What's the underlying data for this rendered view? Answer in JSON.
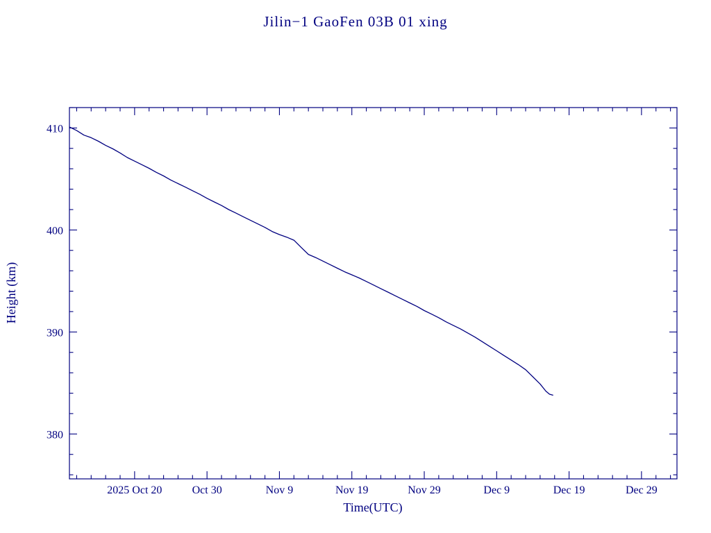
{
  "page": {
    "background": "#ffffff",
    "accent": "#000080"
  },
  "chart_data": {
    "type": "line",
    "title": "Jilin−1 GaoFen 03B 01 xing",
    "xlabel": "Time(UTC)",
    "ylabel": "Height (km)",
    "line_color": "#000080",
    "legend": "none",
    "grid": false,
    "x_encoding": "days, 0 = 2025 Oct 11 (left edge of frame)",
    "xlim": [
      0,
      83.9
    ],
    "ylim": [
      375.6,
      412.0
    ],
    "x_major_ticks": [
      {
        "x": 9,
        "label": "2025 Oct 20"
      },
      {
        "x": 19,
        "label": "Oct 30"
      },
      {
        "x": 29,
        "label": "Nov 9"
      },
      {
        "x": 39,
        "label": "Nov 19"
      },
      {
        "x": 49,
        "label": "Nov 29"
      },
      {
        "x": 59,
        "label": "Dec 9"
      },
      {
        "x": 69,
        "label": "Dec 19"
      },
      {
        "x": 79,
        "label": "Dec 29"
      }
    ],
    "x_minor_step": 2,
    "y_major_ticks": [
      380,
      390,
      400,
      410
    ],
    "y_minor_step": 2,
    "series": [
      {
        "name": "orbital height",
        "points": [
          [
            0,
            410.1
          ],
          [
            1,
            409.75
          ],
          [
            2,
            409.3
          ],
          [
            3,
            409.05
          ],
          [
            4,
            408.7
          ],
          [
            5,
            408.3
          ],
          [
            6,
            407.95
          ],
          [
            7,
            407.55
          ],
          [
            8,
            407.1
          ],
          [
            9,
            406.75
          ],
          [
            10,
            406.4
          ],
          [
            11,
            406.05
          ],
          [
            12,
            405.65
          ],
          [
            13,
            405.3
          ],
          [
            14,
            404.9
          ],
          [
            15,
            404.55
          ],
          [
            16,
            404.2
          ],
          [
            17,
            403.85
          ],
          [
            18,
            403.5
          ],
          [
            19,
            403.1
          ],
          [
            20,
            402.75
          ],
          [
            21,
            402.4
          ],
          [
            22,
            402.0
          ],
          [
            23,
            401.65
          ],
          [
            24,
            401.3
          ],
          [
            25,
            400.95
          ],
          [
            26,
            400.6
          ],
          [
            27,
            400.25
          ],
          [
            28,
            399.85
          ],
          [
            29,
            399.55
          ],
          [
            30,
            399.3
          ],
          [
            31,
            399.0
          ],
          [
            32,
            398.3
          ],
          [
            33,
            397.6
          ],
          [
            34,
            397.3
          ],
          [
            35,
            396.95
          ],
          [
            36,
            396.6
          ],
          [
            37,
            396.25
          ],
          [
            38,
            395.9
          ],
          [
            39,
            395.6
          ],
          [
            40,
            395.3
          ],
          [
            41,
            394.95
          ],
          [
            42,
            394.6
          ],
          [
            43,
            394.25
          ],
          [
            44,
            393.9
          ],
          [
            45,
            393.55
          ],
          [
            46,
            393.2
          ],
          [
            47,
            392.85
          ],
          [
            48,
            392.5
          ],
          [
            49,
            392.1
          ],
          [
            50,
            391.75
          ],
          [
            51,
            391.4
          ],
          [
            52,
            391.0
          ],
          [
            53,
            390.65
          ],
          [
            54,
            390.3
          ],
          [
            55,
            389.9
          ],
          [
            56,
            389.5
          ],
          [
            57,
            389.05
          ],
          [
            58,
            388.6
          ],
          [
            59,
            388.15
          ],
          [
            60,
            387.7
          ],
          [
            61,
            387.25
          ],
          [
            62,
            386.8
          ],
          [
            63,
            386.3
          ],
          [
            64,
            385.6
          ],
          [
            65,
            384.9
          ],
          [
            65.8,
            384.2
          ],
          [
            66.3,
            383.9
          ],
          [
            66.8,
            383.8
          ]
        ]
      }
    ]
  }
}
